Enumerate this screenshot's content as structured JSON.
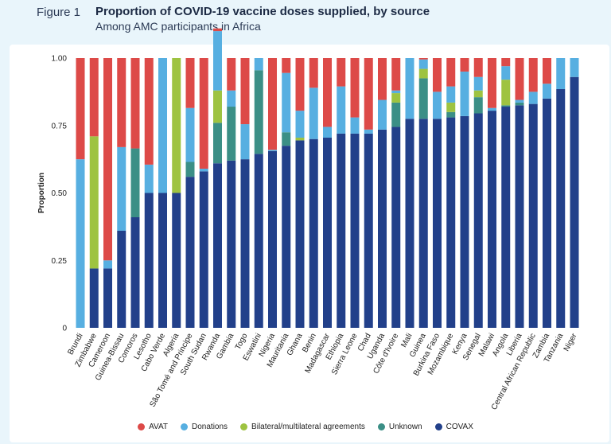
{
  "header": {
    "figure_label": "Figure 1",
    "title": "Proportion of COVID-19 vaccine doses supplied, by source",
    "subtitle": "Among AMC participants in Africa"
  },
  "chart_data": {
    "type": "bar",
    "stacked": true,
    "ylabel": "Proportion",
    "ylim": [
      0,
      1
    ],
    "yticks": [
      "0",
      "0.25",
      "0.50",
      "0.75",
      "1.00"
    ],
    "ytick_values": [
      0,
      0.25,
      0.5,
      0.75,
      1.0
    ],
    "grid": false,
    "legend_position": "bottom",
    "categories": [
      "Brundi",
      "Zimbabwe",
      "Cameroon",
      "Guinea-Bissau",
      "Comoros",
      "Lesotho",
      "Cabo Verde",
      "Algeria",
      "São Tomé and Principe",
      "South Sudan",
      "Rwanda",
      "Gambia",
      "Togo",
      "Eswatini",
      "Nigeria",
      "Mauritania",
      "Ghana",
      "Benin",
      "Madagascar",
      "Ethiopia",
      "Sierra Leone",
      "Chad",
      "Uganda",
      "Côte d'Ivoire",
      "Mali",
      "Guinea",
      "Burkina Faso",
      "Mozambique",
      "Kenya",
      "Senegal",
      "Malawi",
      "Angola",
      "Liberia",
      "Central African Republic",
      "Zambia",
      "Tanzania",
      "Niger"
    ],
    "series": [
      {
        "name": "COVAX",
        "color": "#22408a",
        "values": [
          0,
          0.22,
          0.22,
          0.36,
          0.41,
          0.5,
          0.5,
          0.5,
          0.56,
          0.58,
          0.61,
          0.62,
          0.625,
          0.645,
          0.655,
          0.675,
          0.695,
          0.7,
          0.705,
          0.72,
          0.72,
          0.72,
          0.735,
          0.745,
          0.775,
          0.775,
          0.775,
          0.78,
          0.785,
          0.795,
          0.805,
          0.82,
          0.825,
          0.83,
          0.85,
          0.885,
          0.93
        ]
      },
      {
        "name": "Unknown",
        "color": "#3b8f86",
        "values": [
          0,
          0,
          0,
          0,
          0.255,
          0,
          0,
          0,
          0.055,
          0,
          0.15,
          0.2,
          0,
          0.31,
          0,
          0.05,
          0,
          0,
          0,
          0,
          0,
          0,
          0,
          0.09,
          0,
          0.15,
          0,
          0.02,
          0,
          0.06,
          0,
          0.005,
          0.01,
          0,
          0,
          0,
          0
        ]
      },
      {
        "name": "Bilateral/multilateral agreements",
        "color": "#9ec341",
        "values": [
          0,
          0.49,
          0,
          0,
          0,
          0,
          0,
          0.5,
          0,
          0,
          0.12,
          0,
          0,
          0,
          0,
          0,
          0.01,
          0,
          0,
          0,
          0,
          0,
          0,
          0.035,
          0,
          0.035,
          0,
          0.035,
          0,
          0.025,
          0,
          0.095,
          0,
          0,
          0,
          0,
          0
        ]
      },
      {
        "name": "Donations",
        "color": "#57afe1",
        "values": [
          0.625,
          0,
          0.03,
          0.31,
          0,
          0.105,
          0.5,
          0,
          0.2,
          0.01,
          0.22,
          0.06,
          0.13,
          0.045,
          0.005,
          0.22,
          0.1,
          0.19,
          0.04,
          0.175,
          0.06,
          0.015,
          0.11,
          0.01,
          0.225,
          0.035,
          0.1,
          0.06,
          0.165,
          0.05,
          0.01,
          0.05,
          0.01,
          0.045,
          0.055,
          0.115,
          0.07
        ]
      },
      {
        "name": "AVAT",
        "color": "#dd4a48",
        "values": [
          0.375,
          0.29,
          0.75,
          0.33,
          0.335,
          0.395,
          0,
          0,
          0.185,
          0.41,
          0.01,
          0.12,
          0.245,
          0,
          0.34,
          0.055,
          0.195,
          0.11,
          0.255,
          0.105,
          0.22,
          0.265,
          0.155,
          0.12,
          0,
          0.005,
          0.125,
          0.105,
          0.05,
          0.07,
          0.185,
          0.03,
          0.155,
          0.125,
          0.095,
          0,
          0
        ]
      }
    ],
    "legend_order": [
      "AVAT",
      "Donations",
      "Bilateral/multilateral agreements",
      "Unknown",
      "COVAX"
    ]
  }
}
